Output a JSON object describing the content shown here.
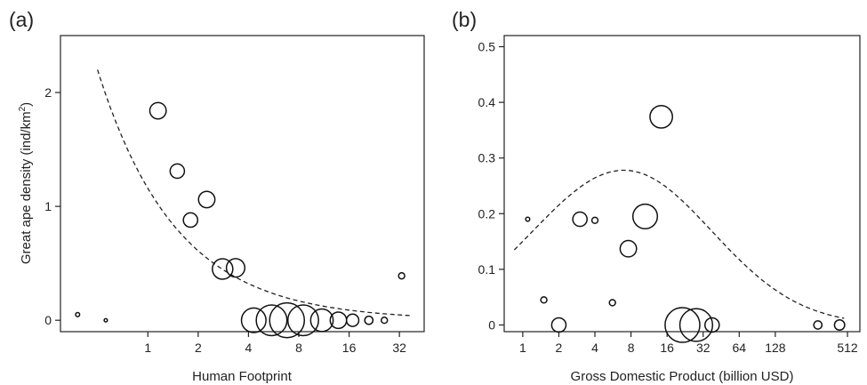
{
  "chart_data": [
    {
      "type": "scatter",
      "panel_label": "(a)",
      "title": "",
      "xlabel": "Human Footprint",
      "ylabel": "Great ape density (ind/km²)",
      "ylabel_text": "Great ape density (ind/km",
      "ylabel_sup": "2",
      "ylabel_close": ")",
      "x_scale": "log2",
      "xlim": [
        0.3,
        45
      ],
      "ylim": [
        -0.1,
        2.5
      ],
      "x_ticks": [
        1,
        2,
        4,
        8,
        16,
        32
      ],
      "x_tick_labels": [
        "1",
        "2",
        "4",
        "8",
        "16",
        "32"
      ],
      "y_ticks": [
        0,
        1,
        2
      ],
      "y_tick_labels": [
        "0",
        "1",
        "2"
      ],
      "grid": false,
      "legend": "none",
      "points": [
        {
          "x": 0.38,
          "y": 0.05,
          "size": 1
        },
        {
          "x": 0.56,
          "y": 0.0,
          "size": 0.8
        },
        {
          "x": 1.15,
          "y": 1.84,
          "size": 4
        },
        {
          "x": 1.5,
          "y": 1.31,
          "size": 3.5
        },
        {
          "x": 1.8,
          "y": 0.88,
          "size": 3.5
        },
        {
          "x": 2.25,
          "y": 1.06,
          "size": 4
        },
        {
          "x": 2.8,
          "y": 0.45,
          "size": 5
        },
        {
          "x": 3.35,
          "y": 0.46,
          "size": 4.5
        },
        {
          "x": 4.3,
          "y": 0.0,
          "size": 6
        },
        {
          "x": 5.5,
          "y": 0.0,
          "size": 7.5
        },
        {
          "x": 6.8,
          "y": 0.0,
          "size": 8.5
        },
        {
          "x": 8.5,
          "y": 0.0,
          "size": 7.5
        },
        {
          "x": 11,
          "y": 0.0,
          "size": 5.5
        },
        {
          "x": 13.8,
          "y": 0.0,
          "size": 4
        },
        {
          "x": 16.8,
          "y": 0.0,
          "size": 3
        },
        {
          "x": 21,
          "y": 0.0,
          "size": 2
        },
        {
          "x": 26,
          "y": 0.0,
          "size": 1.5
        },
        {
          "x": 33,
          "y": 0.39,
          "size": 1.5
        }
      ],
      "fit_curve": {
        "style": "dashed",
        "x_range": [
          0.5,
          38
        ],
        "y_start": 2.2,
        "y_end": 0.04
      }
    },
    {
      "type": "scatter",
      "panel_label": "(b)",
      "title": "",
      "xlabel": "Gross Domestic Product (billion USD)",
      "ylabel": "",
      "x_scale": "log2",
      "xlim": [
        0.7,
        650
      ],
      "ylim": [
        -0.012,
        0.52
      ],
      "x_ticks": [
        1,
        2,
        4,
        8,
        16,
        32,
        64,
        128,
        512
      ],
      "x_tick_labels": [
        "1",
        "2",
        "4",
        "8",
        "16",
        "32",
        "64",
        "128",
        "512"
      ],
      "y_ticks": [
        0,
        0.1,
        0.2,
        0.3,
        0.4,
        0.5
      ],
      "y_tick_labels": [
        "0",
        "0.1",
        "0.2",
        "0.3",
        "0.4",
        "0.5"
      ],
      "grid": false,
      "legend": "none",
      "points": [
        {
          "x": 1.1,
          "y": 0.19,
          "size": 1
        },
        {
          "x": 1.5,
          "y": 0.045,
          "size": 1.5
        },
        {
          "x": 2.0,
          "y": 0.0,
          "size": 3.5
        },
        {
          "x": 3.0,
          "y": 0.19,
          "size": 3.5
        },
        {
          "x": 4.0,
          "y": 0.188,
          "size": 1.5
        },
        {
          "x": 5.6,
          "y": 0.04,
          "size": 1.5
        },
        {
          "x": 7.6,
          "y": 0.137,
          "size": 4
        },
        {
          "x": 10.5,
          "y": 0.195,
          "size": 6
        },
        {
          "x": 14.3,
          "y": 0.374,
          "size": 5.5
        },
        {
          "x": 21.5,
          "y": 0.0,
          "size": 8.5
        },
        {
          "x": 28,
          "y": 0.0,
          "size": 8
        },
        {
          "x": 38,
          "y": 0.0,
          "size": 3.5
        },
        {
          "x": 290,
          "y": 0.0,
          "size": 2
        },
        {
          "x": 440,
          "y": 0.0,
          "size": 2.5
        }
      ],
      "fit_curve": {
        "style": "dashed",
        "x_range": [
          0.85,
          480
        ],
        "peak_x": 7,
        "peak_y": 0.278,
        "y_start": 0.135,
        "y_end": 0.012
      }
    }
  ]
}
